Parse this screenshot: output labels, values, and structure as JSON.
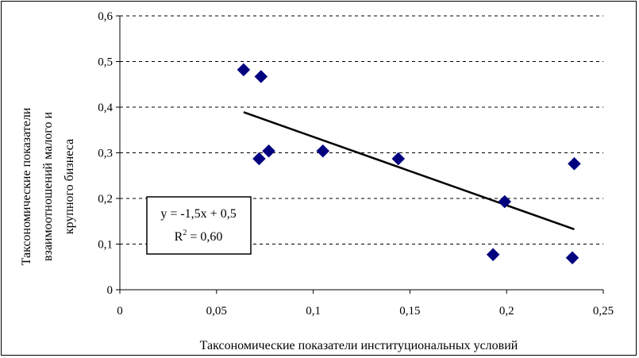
{
  "chart_data": {
    "type": "scatter",
    "title": "",
    "xlabel": "Таксономические показатели институциональных условий",
    "ylabel_lines": [
      "Таксономические показатели",
      "взаимоотношений малого и",
      "крупного бизнеса"
    ],
    "xlim": [
      0,
      0.25
    ],
    "ylim": [
      0,
      0.6
    ],
    "x_ticks": [
      0,
      0.05,
      0.1,
      0.15,
      0.2,
      0.25
    ],
    "x_tick_labels": [
      "0",
      "0,05",
      "0,1",
      "0,15",
      "0,2",
      "0,25"
    ],
    "y_ticks": [
      0,
      0.1,
      0.2,
      0.3,
      0.4,
      0.5,
      0.6
    ],
    "y_tick_labels": [
      "0",
      "0,1",
      "0,2",
      "0,3",
      "0,4",
      "0,5",
      "0,6"
    ],
    "grid": "horizontal dashed",
    "series": [
      {
        "marker": "diamond",
        "color": "#00007F",
        "points": [
          {
            "x": 0.064,
            "y": 0.482
          },
          {
            "x": 0.073,
            "y": 0.467
          },
          {
            "x": 0.072,
            "y": 0.287
          },
          {
            "x": 0.077,
            "y": 0.304
          },
          {
            "x": 0.105,
            "y": 0.304
          },
          {
            "x": 0.144,
            "y": 0.287
          },
          {
            "x": 0.193,
            "y": 0.077
          },
          {
            "x": 0.199,
            "y": 0.193
          },
          {
            "x": 0.234,
            "y": 0.07
          },
          {
            "x": 0.235,
            "y": 0.276
          }
        ]
      }
    ],
    "trendline": {
      "type": "linear",
      "x_range": [
        0.064,
        0.235
      ],
      "slope": -1.5,
      "intercept": 0.485,
      "color": "#000000"
    },
    "annotation": {
      "equation": "y = -1,5x + 0,5",
      "r2_prefix": "R",
      "r2_exp": "2",
      "r2_suffix": " = 0,60"
    }
  }
}
